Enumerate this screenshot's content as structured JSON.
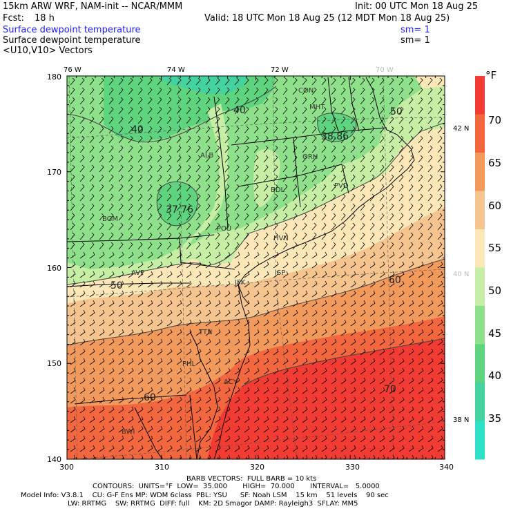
{
  "header": {
    "model": "15km ARW WRF, NAM-init -- NCAR/MMM",
    "init": "Init: 00 UTC Mon 18 Aug 25",
    "fcst_label": "Fcst:",
    "fcst_value": "18 h",
    "valid": "Valid: 18 UTC Mon 18 Aug 25 (12 MDT Mon 18 Aug 25)",
    "field1": "Surface dewpoint temperature",
    "sm1": "sm= 1",
    "field2": "Surface dewpoint temperature",
    "sm2": "sm= 1",
    "field3": "<U10,V10> Vectors"
  },
  "colorbar": {
    "unit": "°F",
    "labels": [
      "70",
      "65",
      "60",
      "55",
      "50",
      "45",
      "40",
      "35"
    ],
    "colors": [
      "#f23b32",
      "#f2673e",
      "#f29a5c",
      "#f6c48e",
      "#fbe7b8",
      "#c6efa5",
      "#8fe08a",
      "#5ed47f",
      "#44d39e",
      "#2de2c8"
    ]
  },
  "axes": {
    "bottom_ticks": [
      "300",
      "310",
      "320",
      "330",
      "340"
    ],
    "left_ticks": [
      "180",
      "170",
      "160",
      "150",
      "140"
    ],
    "lon_labels": [
      "76 W",
      "74 W",
      "72 W",
      "70 W"
    ],
    "lat_labels": [
      "42 N",
      "40 N",
      "38 N"
    ]
  },
  "map": {
    "contour_labels": [
      "40",
      "40",
      "50",
      "50",
      "60",
      "60",
      "70"
    ],
    "extrema": [
      "37.76",
      "38.86"
    ],
    "stations": [
      "CON",
      "MHT",
      "ORH",
      "ALB",
      "BDL",
      "PVD",
      "POU",
      "HVN",
      "BGM",
      "AVP",
      "ISP",
      "JFK",
      "TTN",
      "PHL",
      "ACY",
      "BWI"
    ]
  },
  "footer": {
    "barbs": "BARB VECTORS:  FULL BARB = 10 kts",
    "contours": "CONTOURS:  UNITS=°F  LOW=  35.000       HIGH=  70.000       INTERVAL=   5.0000",
    "model_info": "Model Info: V3.8.1    CU: G-F Ens MP: WDM 6class  PBL: YSU      SF: Noah LSM    15 km    51 levels    90 sec",
    "model_info2": "LW: RRTMG    SW: RRTMG  DIFF: full    KM: 2D Smagor DAMP: Rayleigh3  SFLAY: MM5"
  }
}
